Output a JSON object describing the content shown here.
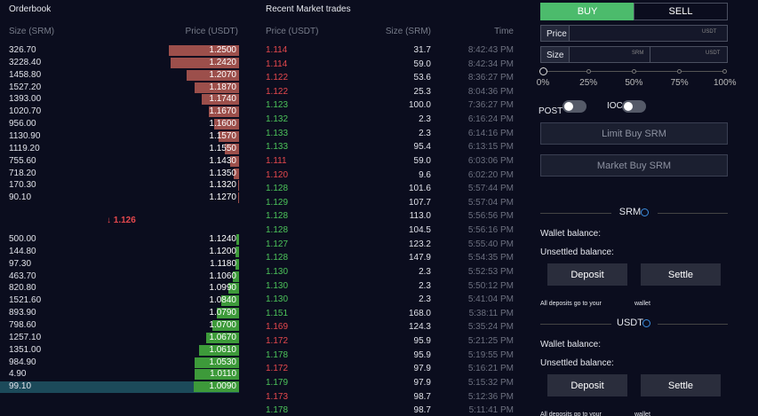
{
  "orderbook": {
    "title": "Orderbook",
    "columns": [
      "Size (SRM)",
      "Price (USDT)"
    ],
    "asks": [
      {
        "size": "326.70",
        "price": "1.2500"
      },
      {
        "size": "3228.40",
        "price": "1.2420"
      },
      {
        "size": "1458.80",
        "price": "1.2070"
      },
      {
        "size": "1527.20",
        "price": "1.1870"
      },
      {
        "size": "1393.00",
        "price": "1.1740"
      },
      {
        "size": "1020.70",
        "price": "1.1670"
      },
      {
        "size": "956.00",
        "price": "1.1600"
      },
      {
        "size": "1130.90",
        "price": "1.1570"
      },
      {
        "size": "1119.20",
        "price": "1.1550"
      },
      {
        "size": "755.60",
        "price": "1.1430"
      },
      {
        "size": "718.20",
        "price": "1.1350"
      },
      {
        "size": "170.30",
        "price": "1.1320"
      },
      {
        "size": "90.10",
        "price": "1.1270"
      }
    ],
    "mid_price": "1.126",
    "bids": [
      {
        "size": "500.00",
        "price": "1.1240"
      },
      {
        "size": "144.80",
        "price": "1.1200"
      },
      {
        "size": "97.30",
        "price": "1.1180"
      },
      {
        "size": "463.70",
        "price": "1.1060"
      },
      {
        "size": "820.80",
        "price": "1.0990"
      },
      {
        "size": "1521.60",
        "price": "1.0840"
      },
      {
        "size": "893.90",
        "price": "1.0790"
      },
      {
        "size": "798.60",
        "price": "1.0700"
      },
      {
        "size": "1257.10",
        "price": "1.0670"
      },
      {
        "size": "1351.00",
        "price": "1.0610"
      },
      {
        "size": "984.90",
        "price": "1.0530"
      },
      {
        "size": "4.90",
        "price": "1.0110"
      },
      {
        "size": "99.10",
        "price": "1.0090"
      }
    ],
    "ask_color": "#9c4f4b",
    "bid_color": "#3d9a3a",
    "mid_color": "#e5484d"
  },
  "trades": {
    "title": "Recent Market trades",
    "columns": [
      "Price (USDT)",
      "Size (SRM)",
      "Time"
    ],
    "rows": [
      {
        "price": "1.114",
        "size": "31.7",
        "time": "8:42:43 PM",
        "color": "#e5484d"
      },
      {
        "price": "1.114",
        "size": "59.0",
        "time": "8:42:34 PM",
        "color": "#e5484d"
      },
      {
        "price": "1.122",
        "size": "53.6",
        "time": "8:36:27 PM",
        "color": "#e5484d"
      },
      {
        "price": "1.122",
        "size": "25.3",
        "time": "8:04:36 PM",
        "color": "#e5484d"
      },
      {
        "price": "1.123",
        "size": "100.0",
        "time": "7:36:27 PM",
        "color": "#4cc35a"
      },
      {
        "price": "1.132",
        "size": "2.3",
        "time": "6:16:24 PM",
        "color": "#4cc35a"
      },
      {
        "price": "1.133",
        "size": "2.3",
        "time": "6:14:16 PM",
        "color": "#4cc35a"
      },
      {
        "price": "1.133",
        "size": "95.4",
        "time": "6:13:15 PM",
        "color": "#4cc35a"
      },
      {
        "price": "1.111",
        "size": "59.0",
        "time": "6:03:06 PM",
        "color": "#e5484d"
      },
      {
        "price": "1.120",
        "size": "9.6",
        "time": "6:02:20 PM",
        "color": "#e5484d"
      },
      {
        "price": "1.128",
        "size": "101.6",
        "time": "5:57:44 PM",
        "color": "#4cc35a"
      },
      {
        "price": "1.129",
        "size": "107.7",
        "time": "5:57:04 PM",
        "color": "#4cc35a"
      },
      {
        "price": "1.128",
        "size": "113.0",
        "time": "5:56:56 PM",
        "color": "#4cc35a"
      },
      {
        "price": "1.128",
        "size": "104.5",
        "time": "5:56:16 PM",
        "color": "#4cc35a"
      },
      {
        "price": "1.127",
        "size": "123.2",
        "time": "5:55:40 PM",
        "color": "#4cc35a"
      },
      {
        "price": "1.128",
        "size": "147.9",
        "time": "5:54:35 PM",
        "color": "#4cc35a"
      },
      {
        "price": "1.130",
        "size": "2.3",
        "time": "5:52:53 PM",
        "color": "#4cc35a"
      },
      {
        "price": "1.130",
        "size": "2.3",
        "time": "5:50:12 PM",
        "color": "#4cc35a"
      },
      {
        "price": "1.130",
        "size": "2.3",
        "time": "5:41:04 PM",
        "color": "#4cc35a"
      },
      {
        "price": "1.151",
        "size": "168.0",
        "time": "5:38:11 PM",
        "color": "#4cc35a"
      },
      {
        "price": "1.169",
        "size": "124.3",
        "time": "5:35:24 PM",
        "color": "#e5484d"
      },
      {
        "price": "1.172",
        "size": "95.9",
        "time": "5:21:25 PM",
        "color": "#e5484d"
      },
      {
        "price": "1.178",
        "size": "95.9",
        "time": "5:19:55 PM",
        "color": "#4cc35a"
      },
      {
        "price": "1.172",
        "size": "97.9",
        "time": "5:16:21 PM",
        "color": "#e5484d"
      },
      {
        "price": "1.179",
        "size": "97.9",
        "time": "5:15:32 PM",
        "color": "#4cc35a"
      },
      {
        "price": "1.173",
        "size": "98.7",
        "time": "5:12:36 PM",
        "color": "#e5484d"
      },
      {
        "price": "1.178",
        "size": "98.7",
        "time": "5:11:41 PM",
        "color": "#4cc35a"
      }
    ]
  },
  "order_form": {
    "tabs": [
      "BUY",
      "SELL"
    ],
    "price_label": "Price",
    "price_unit": "USDT",
    "size_label": "Size",
    "size_units": [
      "SRM",
      "USDT"
    ],
    "slider_labels": [
      "0%",
      "25%",
      "50%",
      "75%",
      "100%"
    ],
    "toggles": [
      "POST",
      "IOC"
    ],
    "buttons": [
      "Limit Buy SRM",
      "Market Buy SRM"
    ]
  },
  "wallets": [
    {
      "currency": "SRM",
      "wallet_label": "Wallet balance:",
      "unsettled_label": "Unsettled balance:",
      "buttons": [
        "Deposit",
        "Settle"
      ],
      "note": "All deposits go to your",
      "note_end": "wallet"
    },
    {
      "currency": "USDT",
      "wallet_label": "Wallet balance:",
      "unsettled_label": "Unsettled balance:",
      "buttons": [
        "Deposit",
        "Settle"
      ],
      "note": "All deposits go to your",
      "note_end": "wallet"
    }
  ]
}
